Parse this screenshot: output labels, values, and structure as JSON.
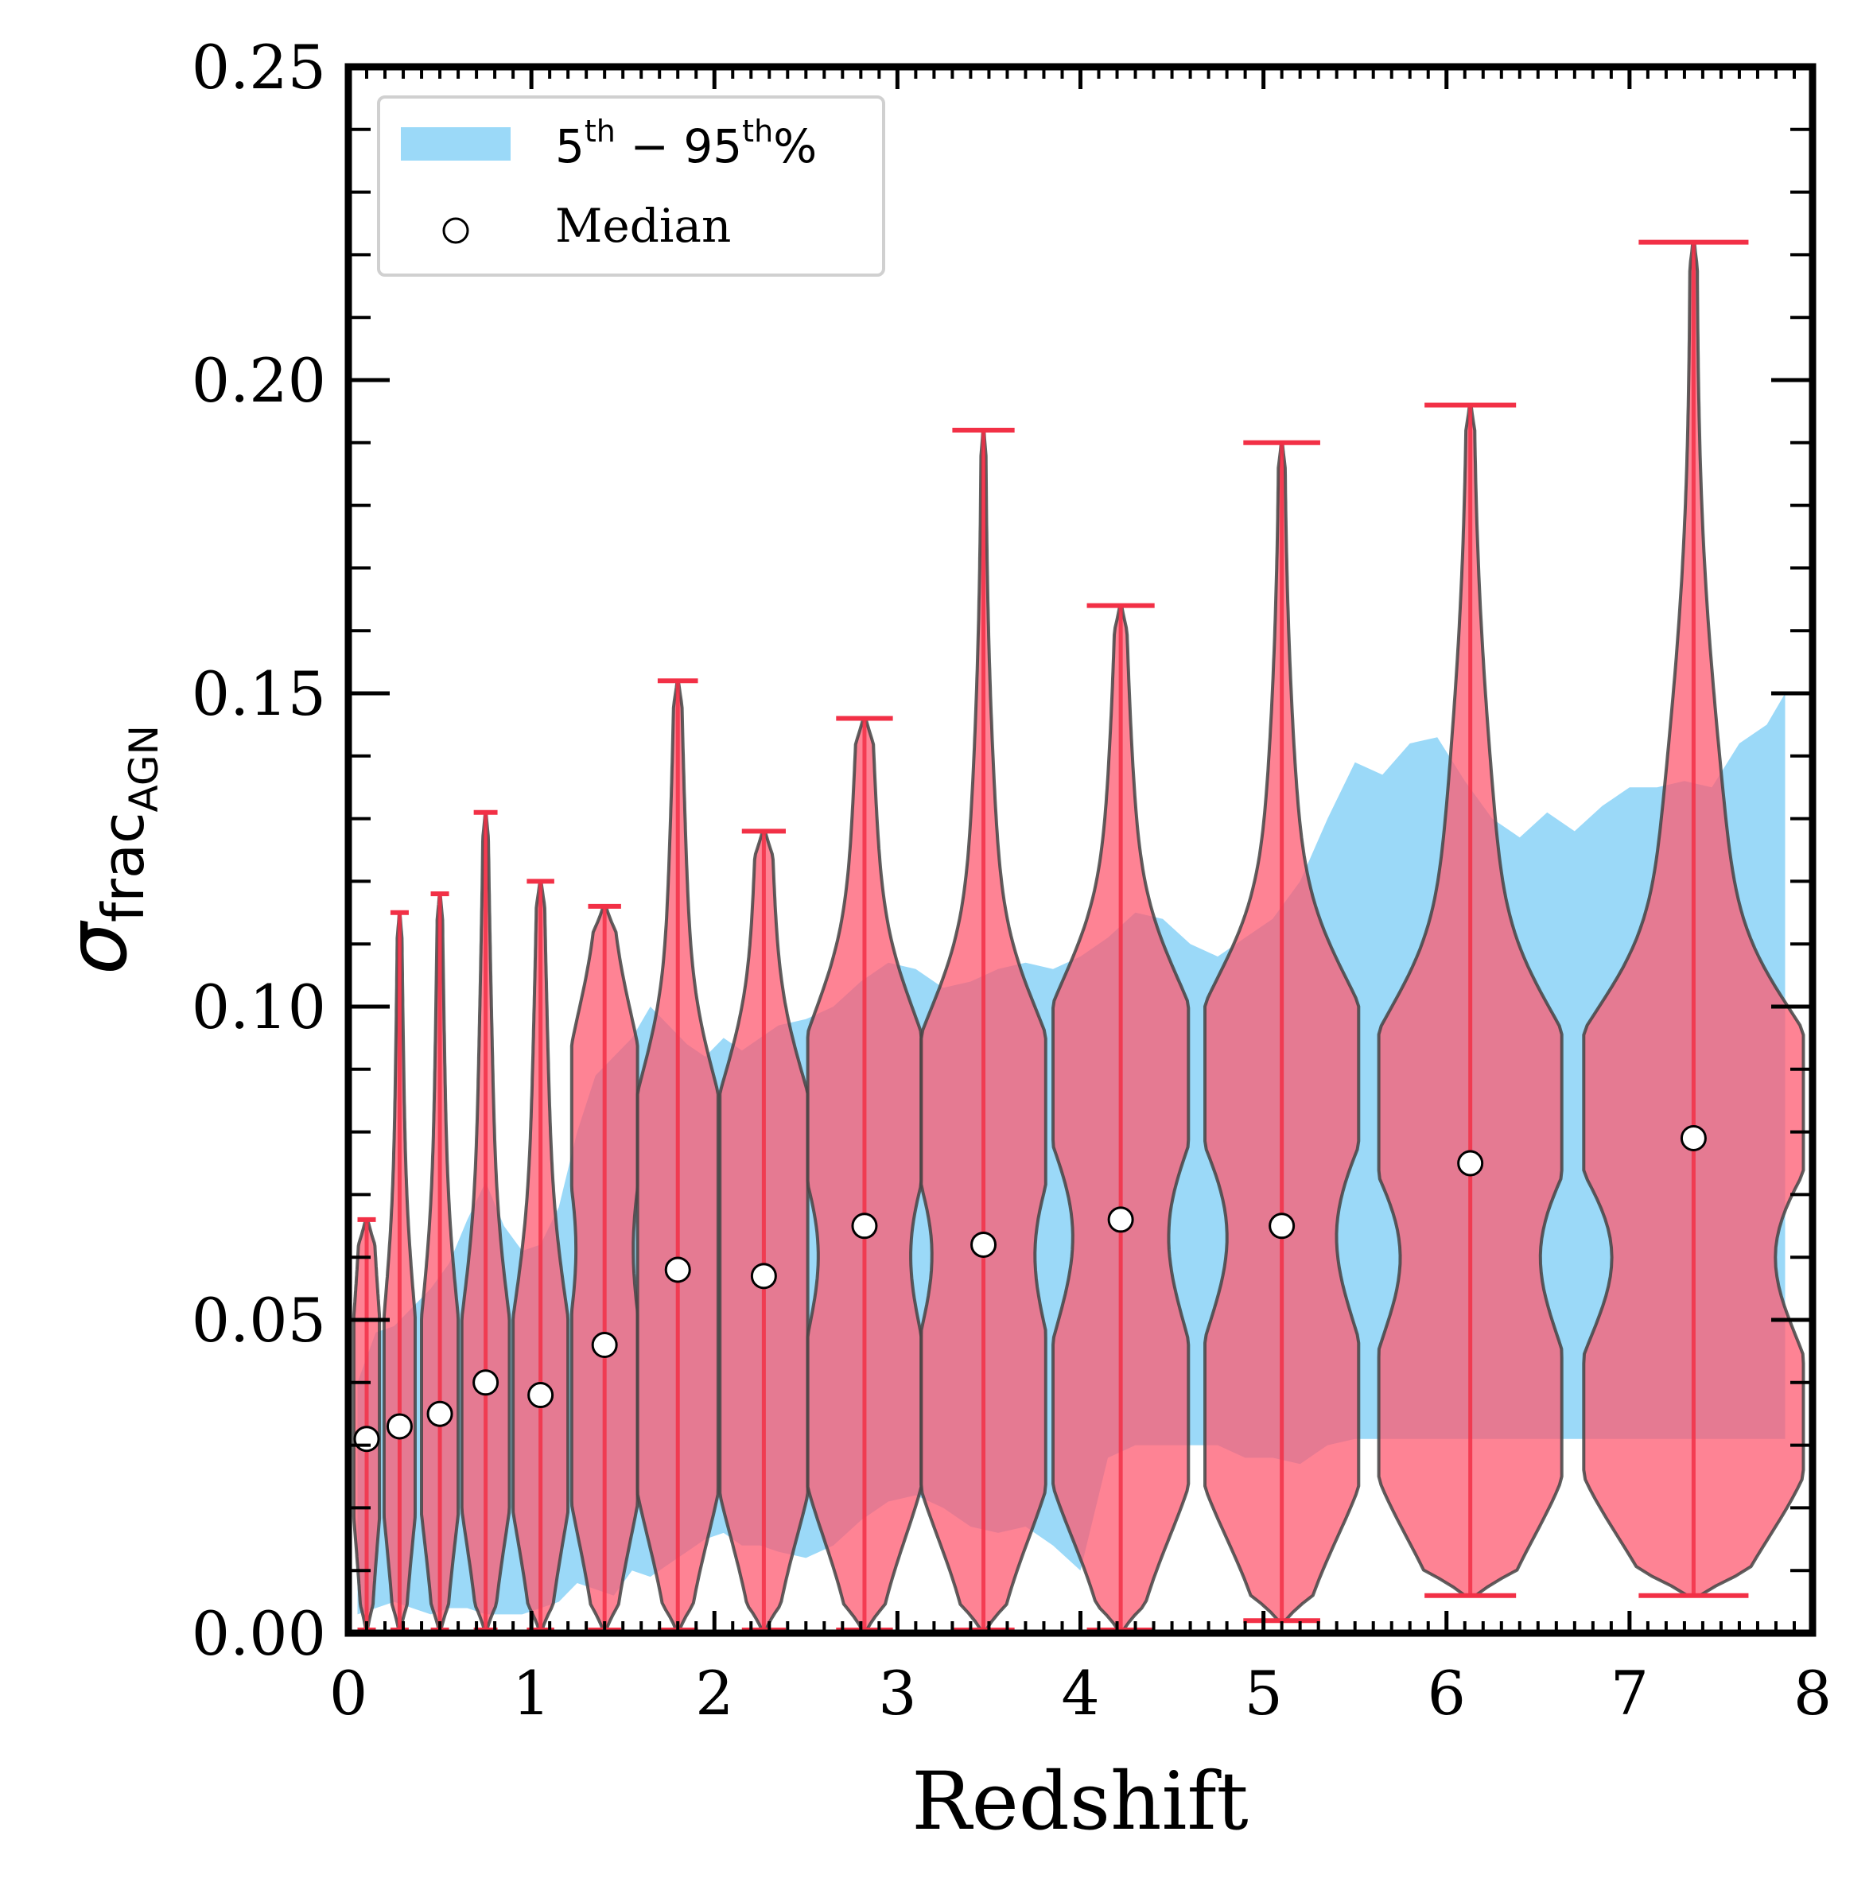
{
  "chart_data": {
    "type": "violin",
    "xlabel": "Redshift",
    "ylabel": {
      "symbol": "σ",
      "sub_main": "frac",
      "sub_sub": "AGN"
    },
    "xlim": [
      0,
      8
    ],
    "ylim": [
      0,
      0.25
    ],
    "xticks": [
      0,
      1,
      2,
      3,
      4,
      5,
      6,
      7,
      8
    ],
    "yticks": [
      0.0,
      0.05,
      0.1,
      0.15,
      0.2,
      0.25
    ],
    "xtick_labels": [
      "0",
      "1",
      "2",
      "3",
      "4",
      "5",
      "6",
      "7",
      "8"
    ],
    "ytick_labels": [
      "0.00",
      "0.05",
      "0.10",
      "0.15",
      "0.20",
      "0.25"
    ],
    "colors": {
      "band": "#9bd9f8",
      "violin": "#fd5a70",
      "violin_overlap": "#d56e88",
      "minmax": "#f23046",
      "edge": "#444444"
    },
    "legend": {
      "location": "upper-left",
      "band_label": {
        "base1": "5",
        "sup1": "th",
        "mid": " − 95",
        "sup2": "th",
        "end": "%"
      },
      "median_label": "Median"
    },
    "band": {
      "name": "5th-95th %",
      "x": [
        0.05,
        0.15,
        0.25,
        0.35,
        0.45,
        0.55,
        0.65,
        0.75,
        0.85,
        0.95,
        1.05,
        1.15,
        1.25,
        1.35,
        1.45,
        1.55,
        1.65,
        1.75,
        1.85,
        1.95,
        2.05,
        2.15,
        2.25,
        2.35,
        2.5,
        2.65,
        2.8,
        2.95,
        3.1,
        3.25,
        3.4,
        3.55,
        3.7,
        3.85,
        4.0,
        4.15,
        4.3,
        4.45,
        4.6,
        4.75,
        4.9,
        5.05,
        5.2,
        5.35,
        5.5,
        5.65,
        5.8,
        5.95,
        6.1,
        6.25,
        6.4,
        6.55,
        6.7,
        6.85,
        7.0,
        7.15,
        7.3,
        7.45,
        7.6,
        7.75,
        7.85
      ],
      "upper": [
        0.04,
        0.048,
        0.049,
        0.052,
        0.055,
        0.059,
        0.066,
        0.072,
        0.065,
        0.061,
        0.062,
        0.068,
        0.08,
        0.089,
        0.092,
        0.095,
        0.1,
        0.097,
        0.094,
        0.092,
        0.095,
        0.093,
        0.095,
        0.097,
        0.098,
        0.1,
        0.104,
        0.107,
        0.106,
        0.103,
        0.104,
        0.106,
        0.107,
        0.106,
        0.108,
        0.111,
        0.115,
        0.114,
        0.11,
        0.108,
        0.111,
        0.114,
        0.12,
        0.13,
        0.139,
        0.137,
        0.142,
        0.143,
        0.136,
        0.13,
        0.127,
        0.131,
        0.128,
        0.132,
        0.135,
        0.135,
        0.136,
        0.135,
        0.142,
        0.145,
        0.15
      ],
      "lower": [
        0.003,
        0.004,
        0.005,
        0.004,
        0.003,
        0.004,
        0.004,
        0.003,
        0.003,
        0.003,
        0.004,
        0.005,
        0.008,
        0.007,
        0.006,
        0.01,
        0.009,
        0.011,
        0.013,
        0.015,
        0.016,
        0.014,
        0.014,
        0.013,
        0.012,
        0.014,
        0.018,
        0.021,
        0.022,
        0.02,
        0.017,
        0.016,
        0.017,
        0.014,
        0.01,
        0.028,
        0.03,
        0.03,
        0.03,
        0.03,
        0.028,
        0.028,
        0.027,
        0.03,
        0.031,
        0.031,
        0.031,
        0.031,
        0.031,
        0.031,
        0.031,
        0.031,
        0.031,
        0.031,
        0.031,
        0.031,
        0.031,
        0.031,
        0.031,
        0.031,
        0.031
      ]
    },
    "violins": [
      {
        "x": 0.1,
        "median": 0.031,
        "min": 0.0005,
        "max": 0.066,
        "peak": 0.033,
        "halfwidth": 0.07,
        "secondary": null
      },
      {
        "x": 0.28,
        "median": 0.033,
        "min": 0.0005,
        "max": 0.115,
        "peak": 0.033,
        "halfwidth": 0.085,
        "secondary": null
      },
      {
        "x": 0.5,
        "median": 0.035,
        "min": 0.0005,
        "max": 0.118,
        "peak": 0.033,
        "halfwidth": 0.1,
        "secondary": null
      },
      {
        "x": 0.75,
        "median": 0.04,
        "min": 0.0005,
        "max": 0.131,
        "peak": 0.033,
        "halfwidth": 0.13,
        "secondary": null
      },
      {
        "x": 1.05,
        "median": 0.038,
        "min": 0.0005,
        "max": 0.12,
        "peak": 0.033,
        "halfwidth": 0.15,
        "secondary": null
      },
      {
        "x": 1.4,
        "median": 0.046,
        "min": 0.0005,
        "max": 0.116,
        "peak": 0.033,
        "halfwidth": 0.18,
        "secondary": 0.085
      },
      {
        "x": 1.8,
        "median": 0.058,
        "min": 0.0005,
        "max": 0.152,
        "peak": 0.033,
        "halfwidth": 0.22,
        "secondary": 0.075
      },
      {
        "x": 2.27,
        "median": 0.057,
        "min": 0.0005,
        "max": 0.128,
        "peak": 0.033,
        "halfwidth": 0.24,
        "secondary": 0.075
      },
      {
        "x": 2.82,
        "median": 0.065,
        "min": 0.0005,
        "max": 0.146,
        "peak": 0.033,
        "halfwidth": 0.31,
        "secondary": 0.085
      },
      {
        "x": 3.47,
        "median": 0.062,
        "min": 0.0005,
        "max": 0.192,
        "peak": 0.033,
        "halfwidth": 0.34,
        "secondary": 0.085
      },
      {
        "x": 4.22,
        "median": 0.066,
        "min": 0.0005,
        "max": 0.164,
        "peak": 0.033,
        "halfwidth": 0.37,
        "secondary": 0.09
      },
      {
        "x": 5.1,
        "median": 0.065,
        "min": 0.002,
        "max": 0.19,
        "peak": 0.033,
        "halfwidth": 0.42,
        "secondary": 0.09
      },
      {
        "x": 6.13,
        "median": 0.075,
        "min": 0.006,
        "max": 0.196,
        "peak": 0.033,
        "halfwidth": 0.5,
        "secondary": 0.085
      },
      {
        "x": 7.35,
        "median": 0.079,
        "min": 0.006,
        "max": 0.222,
        "peak": 0.033,
        "halfwidth": 0.6,
        "secondary": 0.085
      }
    ]
  }
}
